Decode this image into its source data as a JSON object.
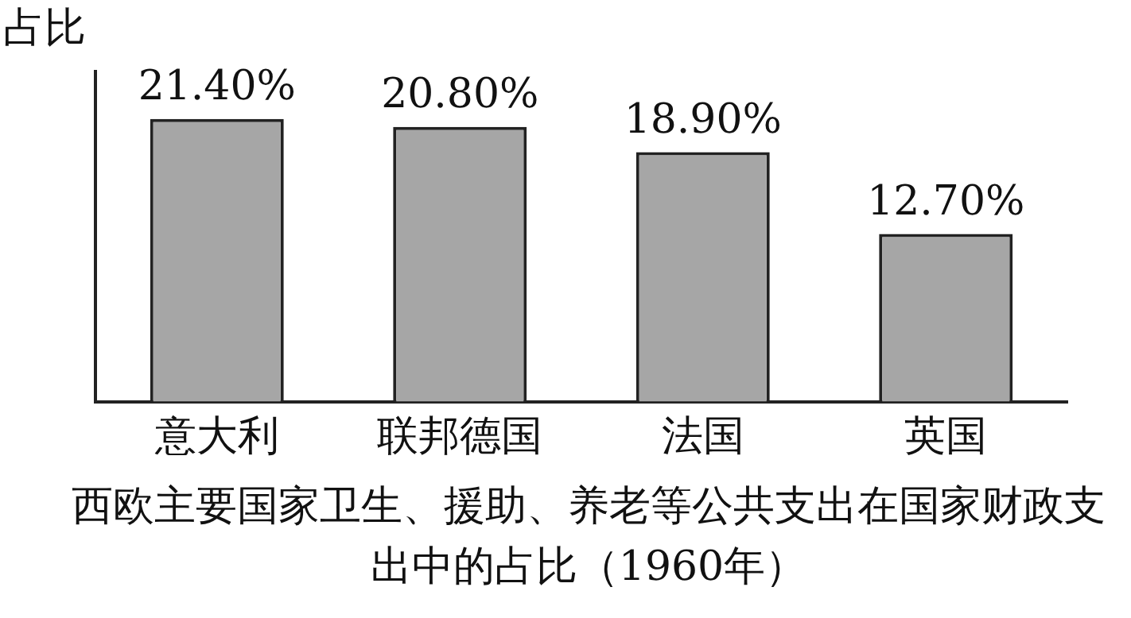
{
  "chart_data": {
    "type": "bar",
    "ylabel": "占比",
    "title": "西欧主要国家卫生、援助、养老等公共支出在国家财政支出中的占比（1960年）",
    "categories": [
      "意大利",
      "联邦德国",
      "法国",
      "英国"
    ],
    "values": [
      21.4,
      20.8,
      18.9,
      12.7
    ],
    "value_labels": [
      "21.40%",
      "20.80%",
      "18.90%",
      "12.70%"
    ],
    "color": "#a6a6a6",
    "grid": false,
    "legend": false
  }
}
